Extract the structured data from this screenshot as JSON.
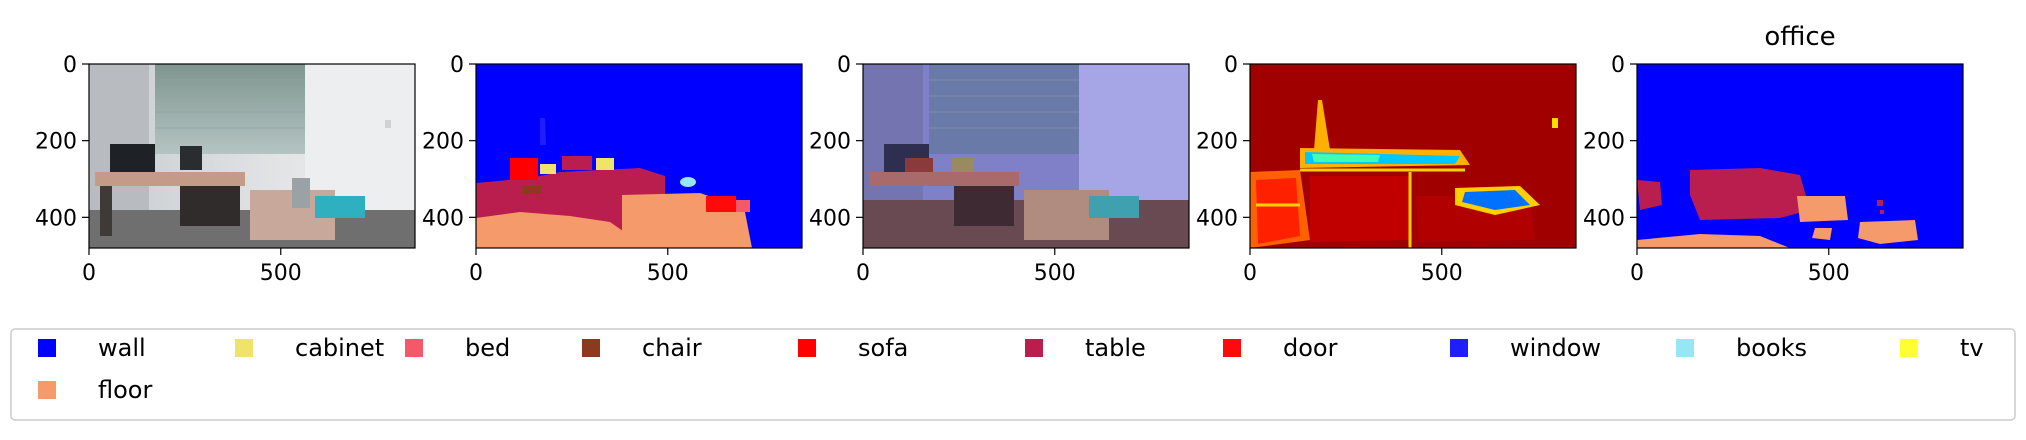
{
  "figure": {
    "panels": [
      {
        "id": "rgb",
        "kind": "photo",
        "title": ""
      },
      {
        "id": "segmentation",
        "kind": "segmentation",
        "title": ""
      },
      {
        "id": "overlay",
        "kind": "overlay",
        "title": ""
      },
      {
        "id": "confidence",
        "kind": "heatmap",
        "title": ""
      },
      {
        "id": "scene",
        "kind": "segmentation-coarse",
        "title": "office"
      }
    ]
  },
  "chart_data": [
    {
      "type": "heatmap",
      "title": "",
      "x_ticks": [
        0,
        500
      ],
      "y_ticks": [
        0,
        200,
        400
      ],
      "xlim": [
        0,
        850
      ],
      "ylim": [
        480,
        0
      ]
    },
    {
      "type": "heatmap",
      "title": "",
      "x_ticks": [
        0,
        500
      ],
      "y_ticks": [
        0,
        200,
        400
      ],
      "xlim": [
        0,
        850
      ],
      "ylim": [
        480,
        0
      ]
    },
    {
      "type": "heatmap",
      "title": "",
      "x_ticks": [
        0,
        500
      ],
      "y_ticks": [
        0,
        200,
        400
      ],
      "xlim": [
        0,
        850
      ],
      "ylim": [
        480,
        0
      ]
    },
    {
      "type": "heatmap",
      "title": "",
      "x_ticks": [
        0,
        500
      ],
      "y_ticks": [
        0,
        200,
        400
      ],
      "xlim": [
        0,
        850
      ],
      "ylim": [
        480,
        0
      ]
    },
    {
      "type": "heatmap",
      "title": "office",
      "x_ticks": [
        0,
        500
      ],
      "y_ticks": [
        0,
        200,
        400
      ],
      "xlim": [
        0,
        850
      ],
      "ylim": [
        480,
        0
      ]
    }
  ],
  "legend": {
    "placement": "bottom",
    "columns": 10,
    "entries": [
      {
        "label": "wall",
        "color": "#0000ff"
      },
      {
        "label": "cabinet",
        "color": "#f0e36a"
      },
      {
        "label": "bed",
        "color": "#f4596a"
      },
      {
        "label": "chair",
        "color": "#8b3a1e"
      },
      {
        "label": "sofa",
        "color": "#ff0000"
      },
      {
        "label": "table",
        "color": "#b91e4e"
      },
      {
        "label": "door",
        "color": "#ff0a0a"
      },
      {
        "label": "window",
        "color": "#1e1eff"
      },
      {
        "label": "books",
        "color": "#96e6f5"
      },
      {
        "label": "tv",
        "color": "#ffff32"
      },
      {
        "label": "floor",
        "color": "#f59a6a"
      }
    ]
  },
  "colors": {
    "wall": "#0000ff",
    "floor": "#f59a6a",
    "table": "#b91e4e",
    "heat_background": "#a00000"
  }
}
